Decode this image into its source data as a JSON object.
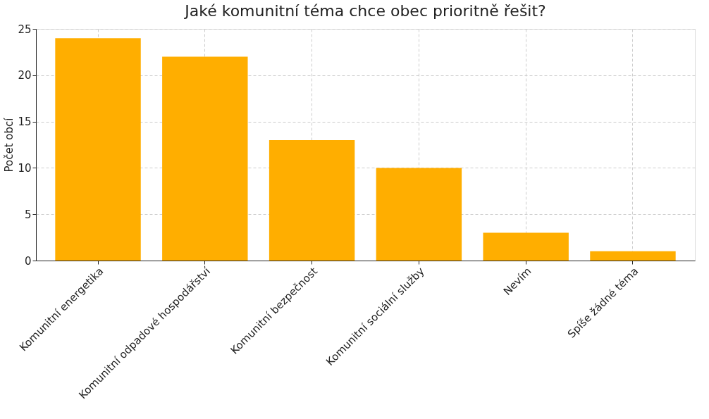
{
  "chart_data": {
    "type": "bar",
    "title": "Jaké komunitní téma chce obec prioritně řešit?",
    "ylabel": "Počet obcí",
    "categories": [
      "Komunitní energetika",
      "Komunitní odpadové hospodářství",
      "Komunitní bezpečnost",
      "Komunitní sociální služby",
      "Nevím",
      "Spíše žádné téma"
    ],
    "values": [
      24,
      22,
      13,
      10,
      3,
      1
    ],
    "color": "#ffae00",
    "ylim": [
      0,
      25
    ],
    "yticks": [
      0,
      5,
      10,
      15,
      20,
      25
    ],
    "grid": true
  }
}
